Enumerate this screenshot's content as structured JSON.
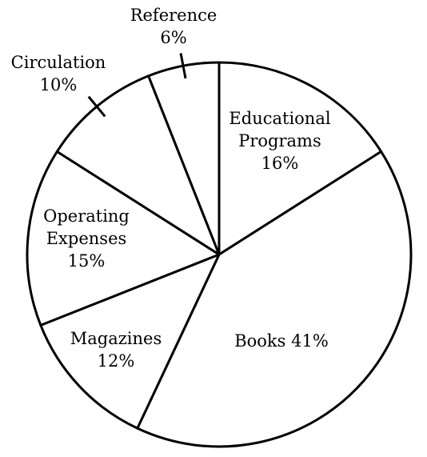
{
  "chart_data": {
    "type": "pie",
    "title": "",
    "start_angle_deg": 0,
    "direction": "clockwise",
    "slices": [
      {
        "name": "Educational Programs",
        "label_lines": [
          "Educational",
          "Programs",
          "16%"
        ],
        "value": 16
      },
      {
        "name": "Books",
        "label_lines": [
          "Books 41%"
        ],
        "value": 41
      },
      {
        "name": "Magazines",
        "label_lines": [
          "Magazines",
          "12%"
        ],
        "value": 12
      },
      {
        "name": "Operating Expenses",
        "label_lines": [
          "Operating",
          "Expenses",
          "15%"
        ],
        "value": 15
      },
      {
        "name": "Circulation",
        "label_lines": [
          "Circulation",
          "10%"
        ],
        "value": 10,
        "label_outside": true
      },
      {
        "name": "Reference",
        "label_lines": [
          "Reference",
          "6%"
        ],
        "value": 6,
        "label_outside": true
      }
    ],
    "legend": "none",
    "colors": {
      "fill": "#ffffff",
      "stroke": "#000000"
    }
  }
}
